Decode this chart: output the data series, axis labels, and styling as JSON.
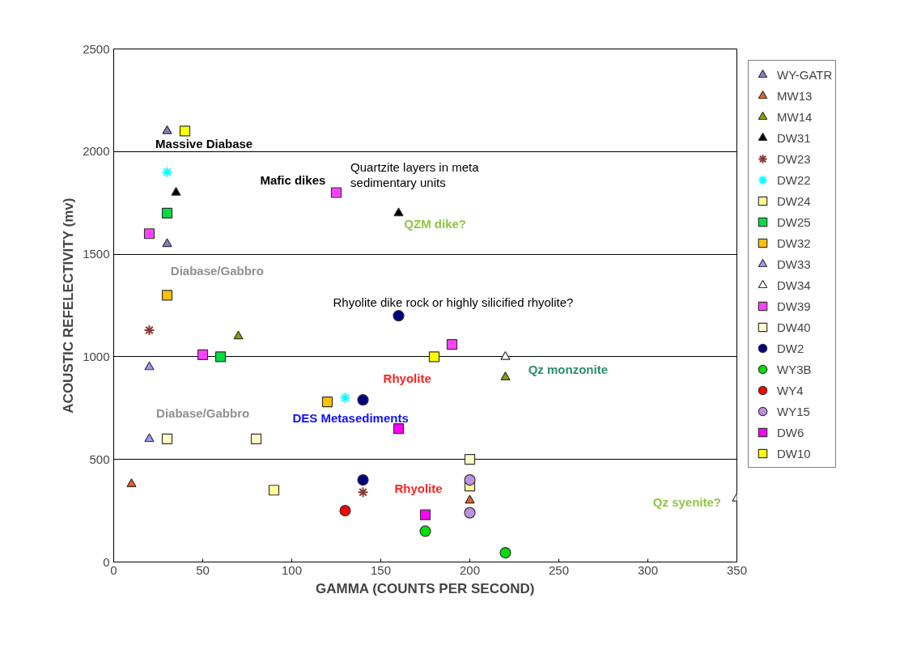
{
  "chart_data": {
    "type": "scatter",
    "xlabel": "GAMMA (COUNTS PER SECOND)",
    "ylabel": "ACOUSTIC REFELECTIVITY (mv)",
    "xlim": [
      0,
      350
    ],
    "xticks": [
      0,
      50,
      100,
      150,
      200,
      250,
      300,
      350
    ],
    "ylim": [
      0,
      2500
    ],
    "yticks": [
      0,
      500,
      1000,
      1500,
      2000,
      2500
    ],
    "grid": "y",
    "legend": "right",
    "series": [
      {
        "name": "WY-GATR",
        "color": "#8080c8",
        "marker": "triangle",
        "x": [
          30,
          30
        ],
        "values": [
          2100,
          1550
        ]
      },
      {
        "name": "MW13",
        "color": "#e8601c",
        "marker": "triangle",
        "x": [
          10,
          200
        ],
        "values": [
          380,
          300
        ]
      },
      {
        "name": "MW14",
        "color": "#8aa000",
        "marker": "triangle",
        "x": [
          70,
          220
        ],
        "values": [
          1100,
          900
        ]
      },
      {
        "name": "DW31",
        "color": "#000000",
        "marker": "triangle",
        "x": [
          35,
          160
        ],
        "values": [
          1800,
          1700
        ]
      },
      {
        "name": "DW23",
        "color": "#8b3a3a",
        "marker": "cross",
        "x": [
          20,
          140
        ],
        "values": [
          1130,
          340
        ]
      },
      {
        "name": "DW22",
        "color": "#00ffff",
        "marker": "cross",
        "x": [
          30,
          130
        ],
        "values": [
          1900,
          800
        ]
      },
      {
        "name": "DW24",
        "color": "#ffff99",
        "marker": "square",
        "x": [
          90,
          200
        ],
        "values": [
          350,
          370
        ]
      },
      {
        "name": "DW25",
        "color": "#00e040",
        "marker": "square",
        "x": [
          30,
          60
        ],
        "values": [
          1700,
          1000
        ]
      },
      {
        "name": "DW32",
        "color": "#ffc000",
        "marker": "square",
        "x": [
          30,
          120
        ],
        "values": [
          1300,
          780
        ]
      },
      {
        "name": "DW33",
        "color": "#9999ff",
        "marker": "triangle",
        "x": [
          20,
          20
        ],
        "values": [
          950,
          600
        ]
      },
      {
        "name": "DW34",
        "color": "#ffffff",
        "marker": "triangle",
        "x": [
          220,
          350
        ],
        "values": [
          1000,
          310
        ]
      },
      {
        "name": "DW39",
        "color": "#ff40ff",
        "marker": "square",
        "x": [
          20,
          50,
          125,
          190
        ],
        "values": [
          1600,
          1010,
          1800,
          1060
        ]
      },
      {
        "name": "DW40",
        "color": "#ffffcc",
        "marker": "square",
        "x": [
          30,
          80,
          200
        ],
        "values": [
          600,
          600,
          500
        ]
      },
      {
        "name": "DW2",
        "color": "#000080",
        "marker": "circle",
        "x": [
          160,
          140,
          140
        ],
        "values": [
          1200,
          790,
          400
        ]
      },
      {
        "name": "WY3B",
        "color": "#00e000",
        "marker": "circle",
        "x": [
          175,
          220
        ],
        "values": [
          150,
          45
        ]
      },
      {
        "name": "WY4",
        "color": "#ff0000",
        "marker": "circle",
        "x": [
          130
        ],
        "values": [
          250
        ]
      },
      {
        "name": "WY15",
        "color": "#c090e0",
        "marker": "circle",
        "x": [
          200,
          200
        ],
        "values": [
          400,
          240
        ]
      },
      {
        "name": "DW6",
        "color": "#ff00ff",
        "marker": "square",
        "x": [
          160,
          175
        ],
        "values": [
          650,
          230
        ]
      },
      {
        "name": "DW10",
        "color": "#ffff00",
        "marker": "square",
        "x": [
          40,
          180
        ],
        "values": [
          2100,
          1000
        ]
      }
    ],
    "annotations": [
      "Massive Diabase",
      "Mafic dikes",
      "Quartzite layers in meta\nsedimentary units",
      "QZM dike?",
      "Diabase/Gabbro",
      "Diabase/Gabbro",
      "Rhyolite dike rock or highly silicified rhyolite?",
      "Rhyolite",
      "DES Metasediments",
      "Rhyolite",
      "Qz monzonite",
      "Qz syenite?"
    ]
  }
}
